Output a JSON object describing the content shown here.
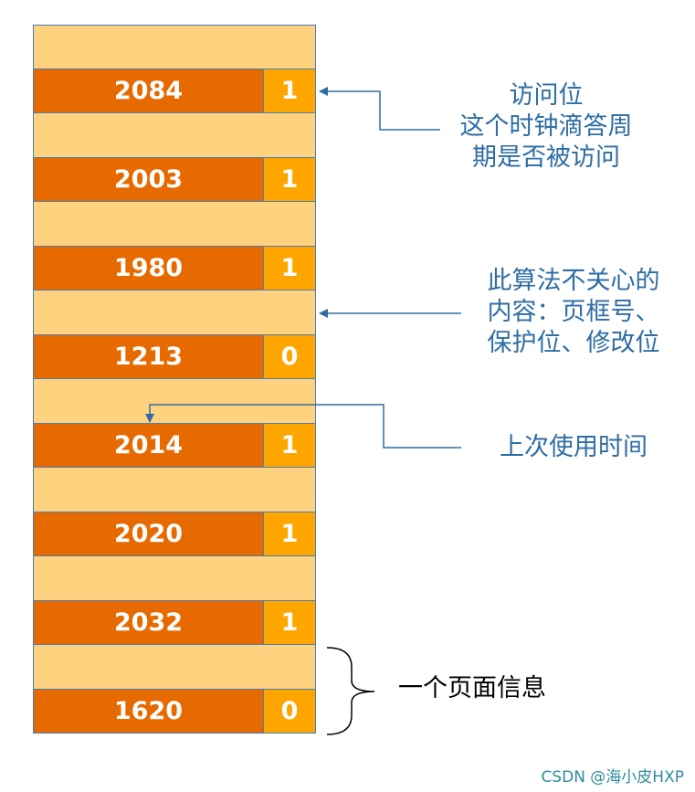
{
  "page_entries": [
    {
      "time": "2084",
      "bit": "1"
    },
    {
      "time": "2003",
      "bit": "1"
    },
    {
      "time": "1980",
      "bit": "1"
    },
    {
      "time": "1213",
      "bit": "0"
    },
    {
      "time": "2014",
      "bit": "1"
    },
    {
      "time": "2020",
      "bit": "1"
    },
    {
      "time": "2032",
      "bit": "1"
    },
    {
      "time": "1620",
      "bit": "0"
    }
  ],
  "annotations": {
    "access_bit": [
      "访问位",
      "这个时钟滴答周",
      "期是否被访问"
    ],
    "ignored_content": [
      "此算法不关心的",
      "内容：页框号、",
      "保护位、修改位"
    ],
    "last_used_time": [
      "上次使用时间"
    ],
    "page_info": "一个页面信息"
  },
  "watermark": "CSDN @海小皮HXP",
  "colors": {
    "time_cell": "#e76a00",
    "bit_cell": "#ffa500",
    "pad_row": "#ffd27f",
    "border": "#4a7eb8",
    "annotation_text": "#2e6da4",
    "arrow": "#2e6da4"
  }
}
